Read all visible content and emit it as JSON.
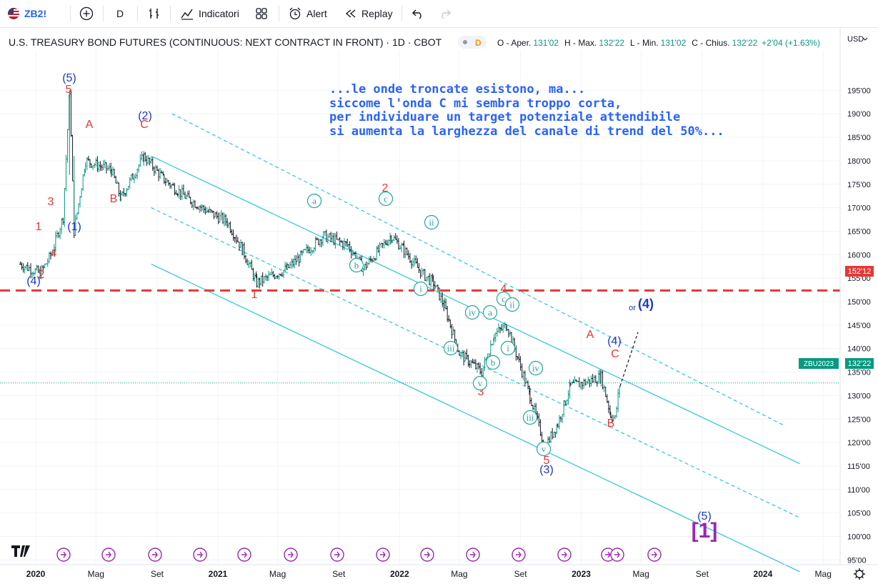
{
  "toolbar": {
    "symbol": "ZB2!",
    "interval": "D",
    "indicators": "Indicatori",
    "alert": "Alert",
    "replay": "Replay"
  },
  "header": {
    "title": "U.S. TREASURY BOND FUTURES (CONTINUOUS: NEXT CONTRACT IN FRONT) · 1D · CBOT",
    "badge": "D",
    "o_lbl": "O - Aper.",
    "o_val": "131'02",
    "h_lbl": "H - Max.",
    "h_val": "132'22",
    "l_lbl": "L - Min.",
    "l_val": "131'02",
    "c_lbl": "C - Chius.",
    "c_val": "132'22",
    "change": "+2'04 (+1.63%)",
    "currency": "USD"
  },
  "price_tags": {
    "line_level": "152'12",
    "symbol_tag": "ZBU2023",
    "last": "132'22"
  },
  "annotation_text": [
    "...le onde troncate esistono, ma...",
    "siccome l'onda C mi sembra troppo corta,",
    "per individuare un target potenziale attendibile",
    "si aumenta la larghezza del canale di trend del 50%..."
  ],
  "wave_labels": {
    "blue": [
      "(5)",
      "(2)",
      "(1)",
      "(4)",
      "(4)",
      "(4)",
      "(3)",
      "(5)"
    ],
    "red": [
      "5",
      "A",
      "3",
      "1",
      "4",
      "B",
      "C",
      "2",
      "2",
      "1",
      "4",
      "3",
      "A",
      "C",
      "5",
      "B"
    ],
    "green": [
      "a",
      "c",
      "ii",
      "b",
      "i",
      "c",
      "ii",
      "iv",
      "a",
      "iii",
      "b",
      "i",
      "iv",
      "v",
      "iii",
      "v"
    ],
    "or": "or",
    "degree": "[1]"
  },
  "colors": {
    "blue_label": "#1d39c4",
    "red_label": "#e53935",
    "green_label": "#26a69a",
    "channel": "#26c6da",
    "dashed_level": "#e53935",
    "purple": "#9c27b0",
    "candle": "#089981"
  },
  "chart_data": {
    "type": "candlestick",
    "symbol": "ZB2!",
    "timeframe": "1D",
    "x_labels": [
      "2020",
      "Mag",
      "Set",
      "2021",
      "Mag",
      "Set",
      "2022",
      "Mag",
      "Set",
      "2023",
      "Mag",
      "Set",
      "2024",
      "Mag"
    ],
    "y_ticks": [
      "195'00",
      "190'00",
      "185'00",
      "180'00",
      "175'00",
      "170'00",
      "165'00",
      "160'00",
      "155'00",
      "150'00",
      "145'00",
      "140'00",
      "135'00",
      "130'00",
      "125'00",
      "120'00",
      "115'00",
      "110'00",
      "105'00",
      "100'00",
      "95'00"
    ],
    "ylim": [
      93,
      198
    ],
    "series_path": [
      [
        "2019-12-01",
        158
      ],
      [
        "2020-01-10",
        156
      ],
      [
        "2020-02-01",
        160
      ],
      [
        "2020-02-25",
        168
      ],
      [
        "2020-03-09",
        195
      ],
      [
        "2020-03-18",
        165
      ],
      [
        "2020-04-10",
        180
      ],
      [
        "2020-06-01",
        178
      ],
      [
        "2020-06-20",
        172
      ],
      [
        "2020-08-05",
        181
      ],
      [
        "2020-09-15",
        176
      ],
      [
        "2020-11-01",
        172
      ],
      [
        "2020-12-15",
        169
      ],
      [
        "2021-01-20",
        167
      ],
      [
        "2021-02-20",
        161
      ],
      [
        "2021-03-20",
        154
      ],
      [
        "2021-05-20",
        157
      ],
      [
        "2021-08-01",
        164
      ],
      [
        "2021-09-20",
        162
      ],
      [
        "2021-10-20",
        157
      ],
      [
        "2021-12-15",
        164
      ],
      [
        "2022-01-10",
        161
      ],
      [
        "2022-02-15",
        156
      ],
      [
        "2022-03-10",
        154
      ],
      [
        "2022-04-01",
        149
      ],
      [
        "2022-05-01",
        139
      ],
      [
        "2022-06-15",
        135
      ],
      [
        "2022-07-10",
        143
      ],
      [
        "2022-08-05",
        145
      ],
      [
        "2022-08-20",
        140
      ],
      [
        "2022-09-20",
        130
      ],
      [
        "2022-10-20",
        119
      ],
      [
        "2022-11-15",
        124
      ],
      [
        "2022-12-10",
        132
      ],
      [
        "2023-01-15",
        133
      ],
      [
        "2023-02-10",
        134
      ],
      [
        "2023-03-01",
        126
      ],
      [
        "2023-03-10",
        125
      ],
      [
        "2023-03-20",
        133
      ]
    ],
    "horizontal_level": 152.375,
    "last_price": 132.6875,
    "channel_lines": [
      {
        "style": "solid",
        "from": [
          "2020-08-20",
          181
        ],
        "to": [
          "2024-03-15",
          115.5
        ]
      },
      {
        "style": "solid",
        "from": [
          "2020-08-20",
          158
        ],
        "to": [
          "2024-03-15",
          92.5
        ]
      },
      {
        "style": "dashed",
        "from": [
          "2020-08-20",
          170
        ],
        "to": [
          "2024-03-15",
          104
        ]
      },
      {
        "style": "dashed",
        "from": [
          "2020-10-01",
          190
        ],
        "to": [
          "2024-02-15",
          123.5
        ]
      }
    ],
    "projection": {
      "from": [
        "2023-03-20",
        132
      ],
      "to": [
        "2023-04-25",
        143.5
      ]
    }
  }
}
